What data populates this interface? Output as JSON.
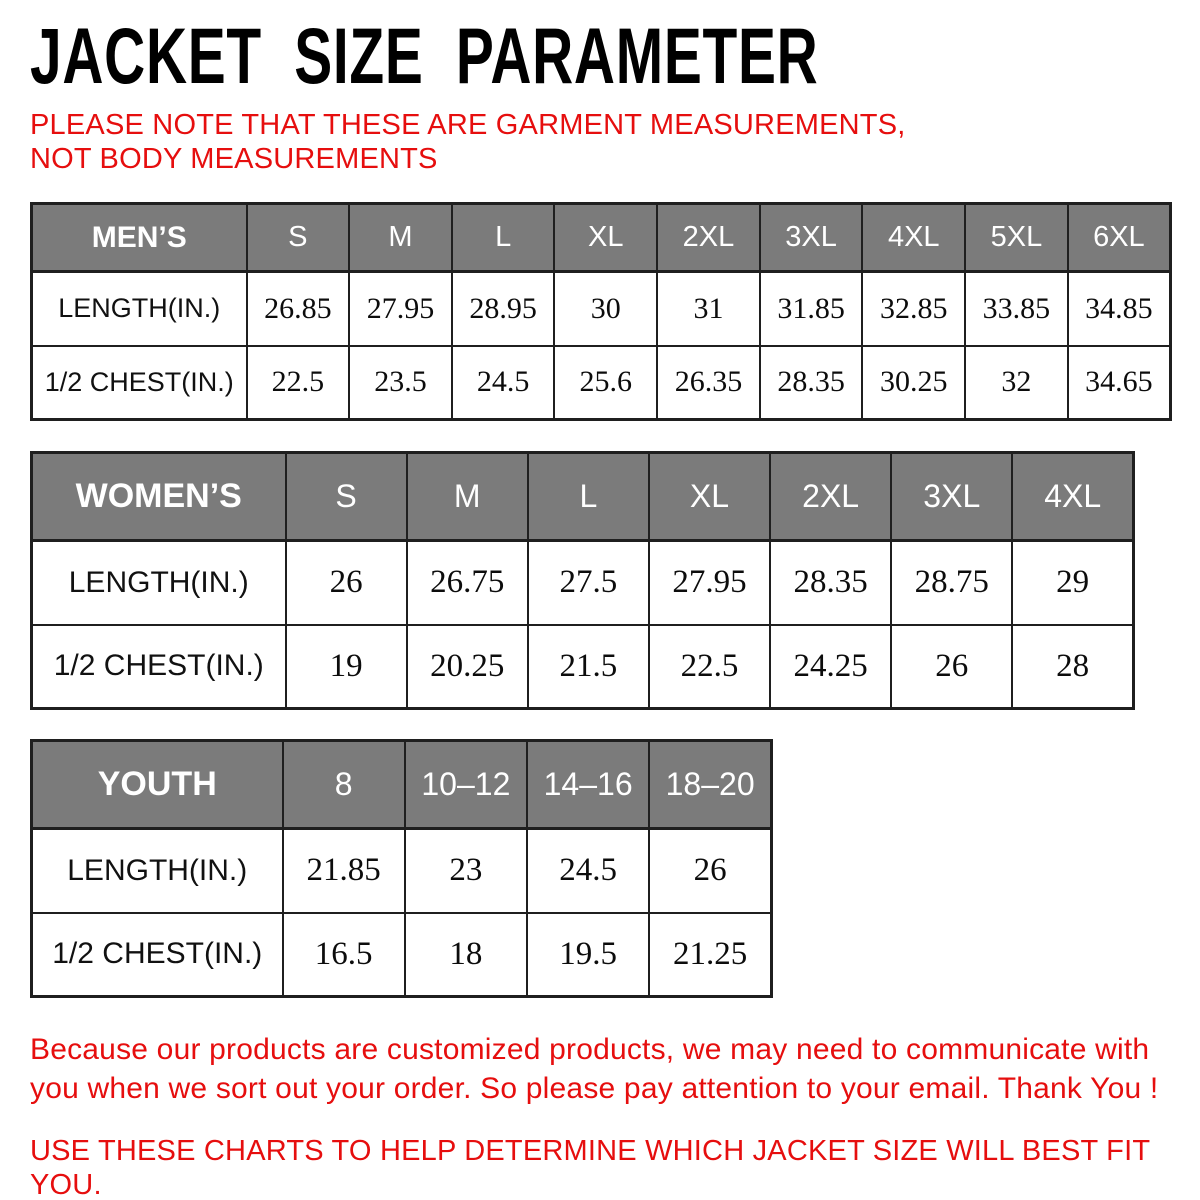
{
  "page": {
    "title": "JACKET SIZE PARAMETER",
    "note": "PLEASE NOTE THAT THESE ARE GARMENT MEASUREMENTS, NOT BODY MEASUREMENTS",
    "footer_note": "Because our products are customized products, we may need to communicate with you when we sort out your order. So please pay attention to your email. Thank You !",
    "footer_usage": "USE THESE CHARTS TO HELP DETERMINE WHICH JACKET SIZE WILL BEST FIT YOU."
  },
  "colors": {
    "header_bg": "#7b7b7b",
    "header_text": "#ffffff",
    "accent_red": "#e60e0e",
    "border": "#1f1f1f",
    "title_text": "#000000"
  },
  "tables": [
    {
      "name": "MEN’S",
      "sizes": [
        "S",
        "M",
        "L",
        "XL",
        "2XL",
        "3XL",
        "4XL",
        "5XL",
        "6XL"
      ],
      "rows": [
        {
          "label": "LENGTH(IN.)",
          "values": [
            "26.85",
            "27.95",
            "28.95",
            "30",
            "31",
            "31.85",
            "32.85",
            "33.85",
            "34.85"
          ]
        },
        {
          "label": "1/2 CHEST(IN.)",
          "values": [
            "22.5",
            "23.5",
            "24.5",
            "25.6",
            "26.35",
            "28.35",
            "30.25",
            "32",
            "34.65"
          ]
        }
      ]
    },
    {
      "name": "WOMEN’S",
      "sizes": [
        "S",
        "M",
        "L",
        "XL",
        "2XL",
        "3XL",
        "4XL"
      ],
      "rows": [
        {
          "label": "LENGTH(IN.)",
          "values": [
            "26",
            "26.75",
            "27.5",
            "27.95",
            "28.35",
            "28.75",
            "29"
          ]
        },
        {
          "label": "1/2 CHEST(IN.)",
          "values": [
            "19",
            "20.25",
            "21.5",
            "22.5",
            "24.25",
            "26",
            "28"
          ]
        }
      ]
    },
    {
      "name": "YOUTH",
      "sizes": [
        "8",
        "10–12",
        "14–16",
        "18–20"
      ],
      "rows": [
        {
          "label": "LENGTH(IN.)",
          "values": [
            "21.85",
            "23",
            "24.5",
            "26"
          ]
        },
        {
          "label": "1/2 CHEST(IN.)",
          "values": [
            "16.5",
            "18",
            "19.5",
            "21.25"
          ]
        }
      ]
    }
  ]
}
